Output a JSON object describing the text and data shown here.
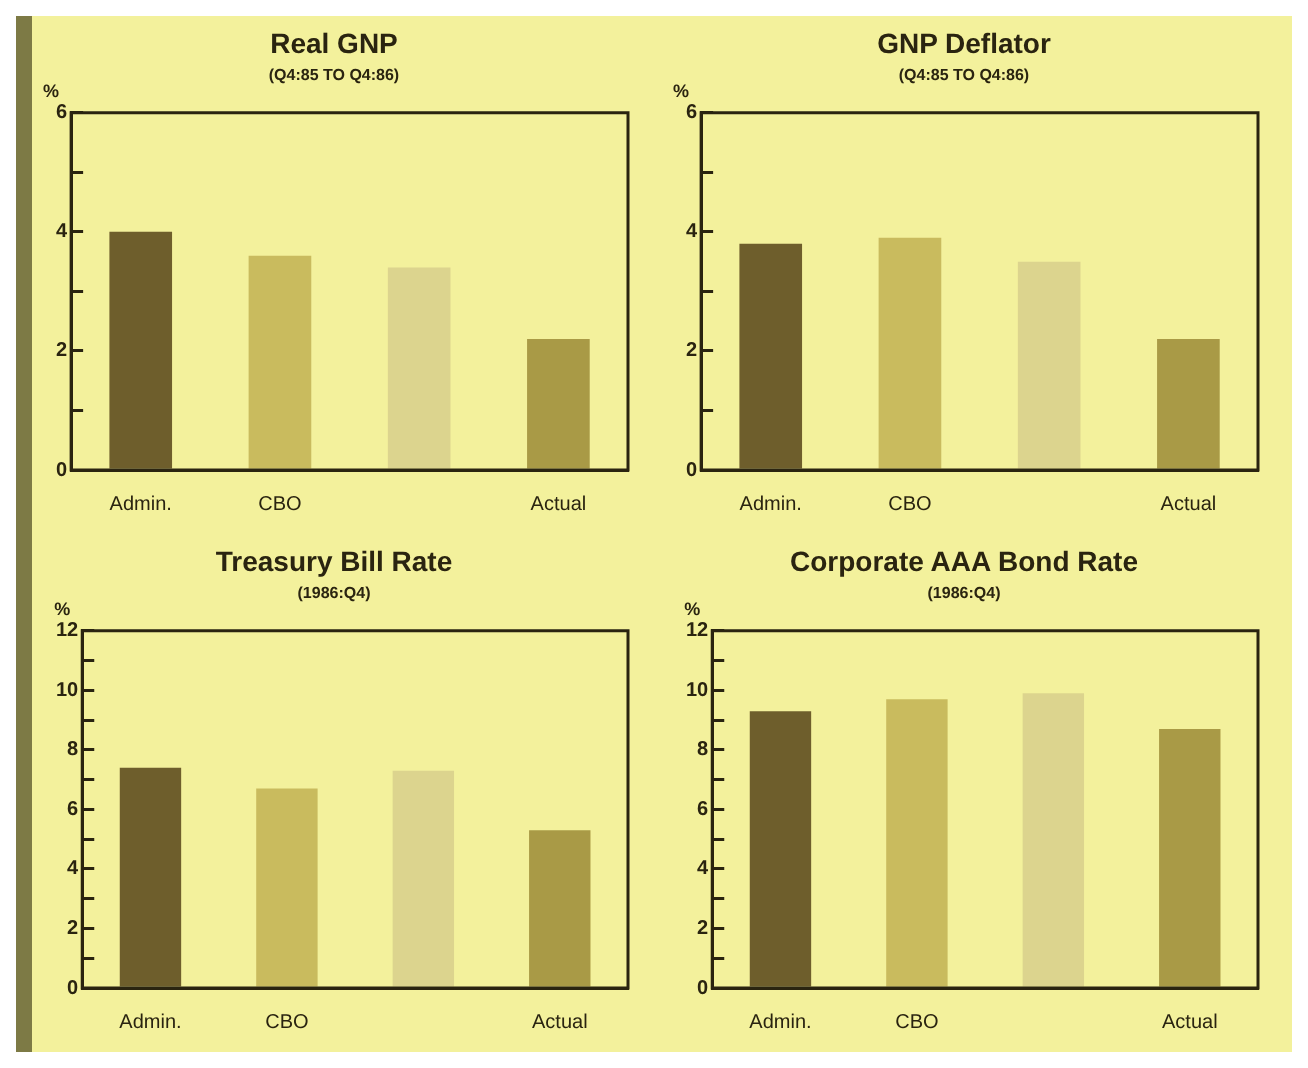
{
  "chart_data": [
    {
      "type": "bar",
      "title": "Real GNP",
      "subtitle": "(Q4:85 TO Q4:86)",
      "ylabel": "%",
      "categories": [
        "Admin.",
        "CBO",
        null,
        "Actual"
      ],
      "values": [
        4.0,
        3.6,
        3.4,
        2.2
      ],
      "colors": [
        "#6e5e2c",
        "#c9bb5e",
        "#dcd48e",
        "#a99a46"
      ],
      "ylim": [
        0,
        6
      ],
      "yticks": [
        0,
        {
          "value": 1,
          "label": null
        },
        2,
        {
          "value": 3,
          "label": null
        },
        4,
        {
          "value": 5,
          "label": null
        },
        6
      ]
    },
    {
      "type": "bar",
      "title": "GNP Deflator",
      "subtitle": "(Q4:85 TO Q4:86)",
      "ylabel": "%",
      "categories": [
        "Admin.",
        "CBO",
        null,
        "Actual"
      ],
      "values": [
        3.8,
        3.9,
        3.5,
        2.2
      ],
      "colors": [
        "#6e5e2c",
        "#c9bb5e",
        "#dcd48e",
        "#a99a46"
      ],
      "ylim": [
        0,
        6
      ],
      "yticks": [
        0,
        {
          "value": 1,
          "label": null
        },
        2,
        {
          "value": 3,
          "label": null
        },
        4,
        {
          "value": 5,
          "label": null
        },
        6
      ]
    },
    {
      "type": "bar",
      "title": "Treasury Bill Rate",
      "subtitle": "(1986:Q4)",
      "ylabel": "%",
      "categories": [
        "Admin.",
        "CBO",
        null,
        "Actual"
      ],
      "values": [
        7.4,
        6.7,
        7.3,
        5.3
      ],
      "colors": [
        "#6e5e2c",
        "#c9bb5e",
        "#dcd48e",
        "#a99a46"
      ],
      "ylim": [
        0,
        12
      ],
      "yticks": [
        0,
        {
          "value": 1,
          "label": null
        },
        2,
        {
          "value": 3,
          "label": null
        },
        4,
        {
          "value": 5,
          "label": null
        },
        6,
        {
          "value": 7,
          "label": null
        },
        8,
        {
          "value": 9,
          "label": null
        },
        10,
        {
          "value": 11,
          "label": null
        },
        12
      ]
    },
    {
      "type": "bar",
      "title": "Corporate AAA Bond Rate",
      "subtitle": "(1986:Q4)",
      "ylabel": "%",
      "categories": [
        "Admin.",
        "CBO",
        null,
        "Actual"
      ],
      "values": [
        9.3,
        9.7,
        9.9,
        8.7
      ],
      "colors": [
        "#6e5e2c",
        "#c9bb5e",
        "#dcd48e",
        "#a99a46"
      ],
      "ylim": [
        0,
        12
      ],
      "yticks": [
        0,
        {
          "value": 1,
          "label": null
        },
        2,
        {
          "value": 3,
          "label": null
        },
        4,
        {
          "value": 5,
          "label": null
        },
        6,
        {
          "value": 7,
          "label": null
        },
        8,
        {
          "value": 9,
          "label": null
        },
        10,
        {
          "value": 11,
          "label": null
        },
        12
      ]
    }
  ]
}
